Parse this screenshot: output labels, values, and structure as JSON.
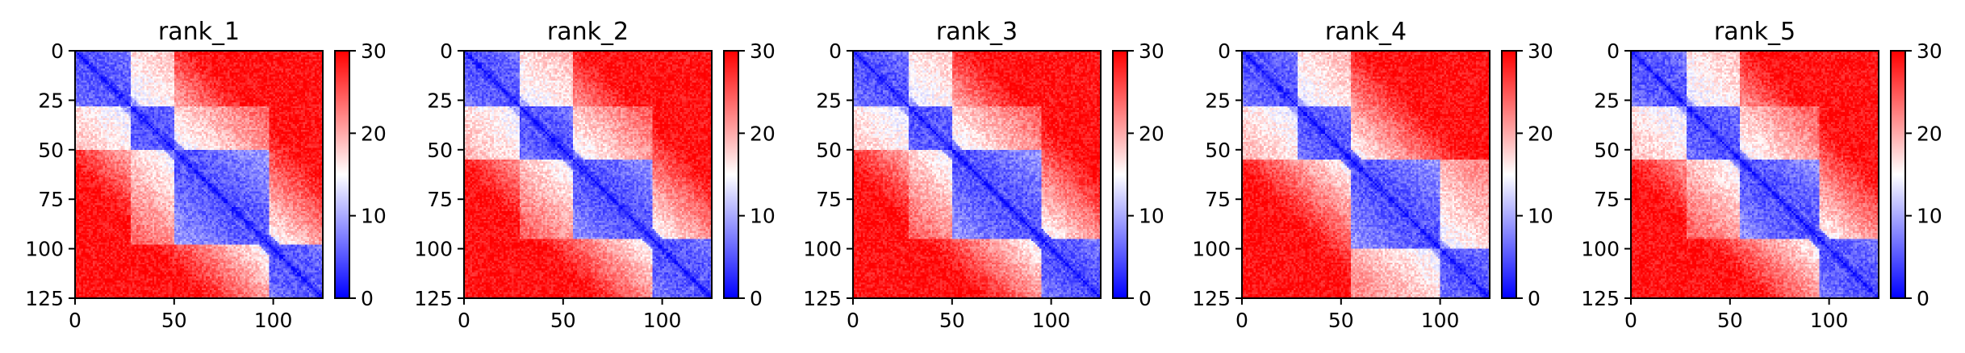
{
  "chart_data": [
    {
      "type": "heatmap",
      "title": "rank_1",
      "x_ticks": [
        "0",
        "50",
        "100"
      ],
      "y_ticks": [
        "0",
        "25",
        "50",
        "75",
        "100",
        "125"
      ],
      "xlim": [
        0,
        125
      ],
      "ylim": [
        125,
        0
      ],
      "colorbar": {
        "min": 0,
        "max": 30,
        "ticks": [
          "0",
          "10",
          "20",
          "30"
        ],
        "colormap": "bwr"
      },
      "domains": [
        [
          0,
          28
        ],
        [
          28,
          50
        ],
        [
          50,
          98
        ],
        [
          98,
          125
        ]
      ],
      "low_offdiagonal_blocks": [
        [
          0,
          28,
          28,
          50,
          0.55
        ],
        [
          28,
          50,
          50,
          98,
          0.35
        ]
      ]
    },
    {
      "type": "heatmap",
      "title": "rank_2",
      "x_ticks": [
        "0",
        "50",
        "100"
      ],
      "y_ticks": [
        "0",
        "25",
        "50",
        "75",
        "100",
        "125"
      ],
      "xlim": [
        0,
        125
      ],
      "ylim": [
        125,
        0
      ],
      "colorbar": {
        "min": 0,
        "max": 30,
        "ticks": [
          "0",
          "10",
          "20",
          "30"
        ],
        "colormap": "bwr"
      },
      "domains": [
        [
          0,
          28
        ],
        [
          28,
          55
        ],
        [
          55,
          95
        ],
        [
          95,
          125
        ]
      ],
      "low_offdiagonal_blocks": [
        [
          0,
          28,
          28,
          55,
          0.55
        ],
        [
          28,
          55,
          55,
          95,
          0.3
        ]
      ]
    },
    {
      "type": "heatmap",
      "title": "rank_3",
      "x_ticks": [
        "0",
        "50",
        "100"
      ],
      "y_ticks": [
        "0",
        "25",
        "50",
        "75",
        "100",
        "125"
      ],
      "xlim": [
        0,
        125
      ],
      "ylim": [
        125,
        0
      ],
      "colorbar": {
        "min": 0,
        "max": 30,
        "ticks": [
          "0",
          "10",
          "20",
          "30"
        ],
        "colormap": "bwr"
      },
      "domains": [
        [
          0,
          28
        ],
        [
          28,
          50
        ],
        [
          50,
          95
        ],
        [
          95,
          125
        ]
      ],
      "low_offdiagonal_blocks": [
        [
          0,
          28,
          28,
          50,
          0.6
        ],
        [
          28,
          50,
          50,
          95,
          0.3
        ]
      ]
    },
    {
      "type": "heatmap",
      "title": "rank_4",
      "x_ticks": [
        "0",
        "50",
        "100"
      ],
      "y_ticks": [
        "0",
        "25",
        "50",
        "75",
        "100",
        "125"
      ],
      "xlim": [
        0,
        125
      ],
      "ylim": [
        125,
        0
      ],
      "colorbar": {
        "min": 0,
        "max": 30,
        "ticks": [
          "0",
          "10",
          "20",
          "30"
        ],
        "colormap": "bwr"
      },
      "domains": [
        [
          0,
          28
        ],
        [
          28,
          55
        ],
        [
          55,
          100
        ],
        [
          100,
          125
        ]
      ],
      "low_offdiagonal_blocks": [
        [
          0,
          28,
          28,
          55,
          0.55
        ],
        [
          55,
          100,
          100,
          125,
          0.45
        ]
      ]
    },
    {
      "type": "heatmap",
      "title": "rank_5",
      "x_ticks": [
        "0",
        "50",
        "100"
      ],
      "y_ticks": [
        "0",
        "25",
        "50",
        "75",
        "100",
        "125"
      ],
      "xlim": [
        0,
        125
      ],
      "ylim": [
        125,
        0
      ],
      "colorbar": {
        "min": 0,
        "max": 30,
        "ticks": [
          "0",
          "10",
          "20",
          "30"
        ],
        "colormap": "bwr"
      },
      "domains": [
        [
          0,
          28
        ],
        [
          28,
          55
        ],
        [
          55,
          95
        ],
        [
          95,
          125
        ]
      ],
      "low_offdiagonal_blocks": [
        [
          0,
          28,
          28,
          55,
          0.6
        ],
        [
          28,
          55,
          55,
          95,
          0.3
        ]
      ]
    }
  ]
}
